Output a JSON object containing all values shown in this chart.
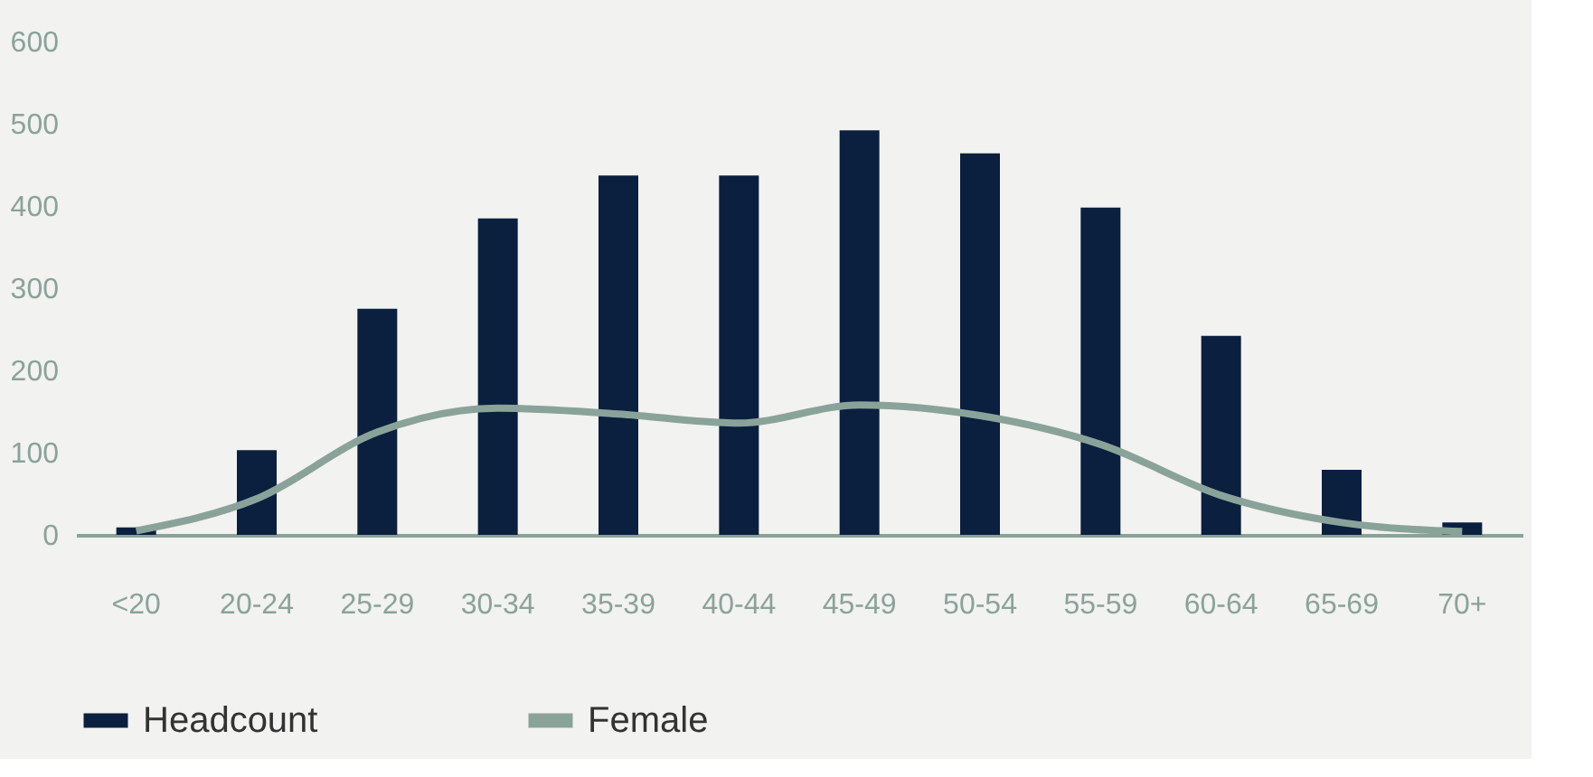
{
  "chart_data": {
    "type": "bar",
    "categories": [
      "<20",
      "20-24",
      "25-29",
      "30-34",
      "35-39",
      "40-44",
      "45-49",
      "50-54",
      "55-59",
      "60-64",
      "65-69",
      "70+"
    ],
    "series": [
      {
        "name": "Headcount",
        "color": "#0b1f3f",
        "values": [
          9,
          103,
          275,
          385,
          437,
          437,
          492,
          464,
          398,
          242,
          79,
          15
        ]
      },
      {
        "name": "Female",
        "type": "line",
        "color": "#8aa39a",
        "values": [
          5,
          44,
          125,
          154,
          147,
          136,
          158,
          145,
          110,
          48,
          15,
          4
        ]
      }
    ],
    "ylim": [
      0,
      600
    ],
    "yticks": [
      0,
      100,
      200,
      300,
      400,
      500,
      600
    ],
    "grid": false,
    "legend": "bottom",
    "marker": "none",
    "line_style": "solid"
  }
}
